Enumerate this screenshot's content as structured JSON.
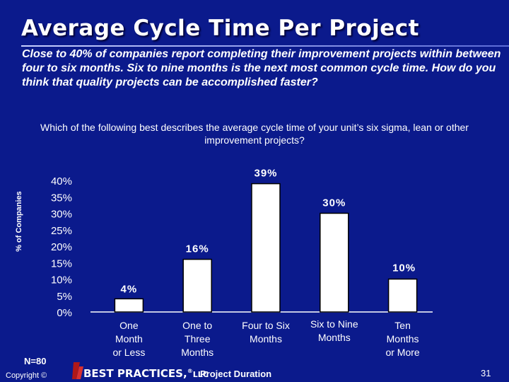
{
  "slide": {
    "title": "Average Cycle Time Per Project",
    "subtitle": "Close to 40% of companies report completing their improvement projects within between four to six months. Six to nine months is the next most common cycle time. How do you think that quality projects can be accomplished faster?",
    "question": "Which of the following best describes the average cycle time of your unit’s six sigma, lean or other improvement projects?",
    "sample_size": "N=80",
    "copyright": "Copyright ©",
    "brand": "BEST PRACTICES",
    "brand_suffix": "LLC",
    "page_number": "31"
  },
  "chart_data": {
    "type": "bar",
    "categories": [
      "One Month or Less",
      "One to Three Months",
      "Four to Six Months",
      "Six to Nine Months",
      "Ten Months or More"
    ],
    "values": [
      4,
      16,
      39,
      30,
      10
    ],
    "data_labels": [
      "4%",
      "16%",
      "39%",
      "30%",
      "10%"
    ],
    "xlabel": "Project Duration",
    "ylabel": "% of Companies",
    "yticks": [
      "0%",
      "5%",
      "10%",
      "15%",
      "20%",
      "25%",
      "30%",
      "35%",
      "40%"
    ],
    "ylim": [
      0,
      40
    ],
    "grid": false,
    "legend": "none",
    "colors": {
      "bar_fill": "#ffffff",
      "bar_stroke": "#000000",
      "axis": "#ffffff",
      "background": "#0b1a8c"
    }
  }
}
